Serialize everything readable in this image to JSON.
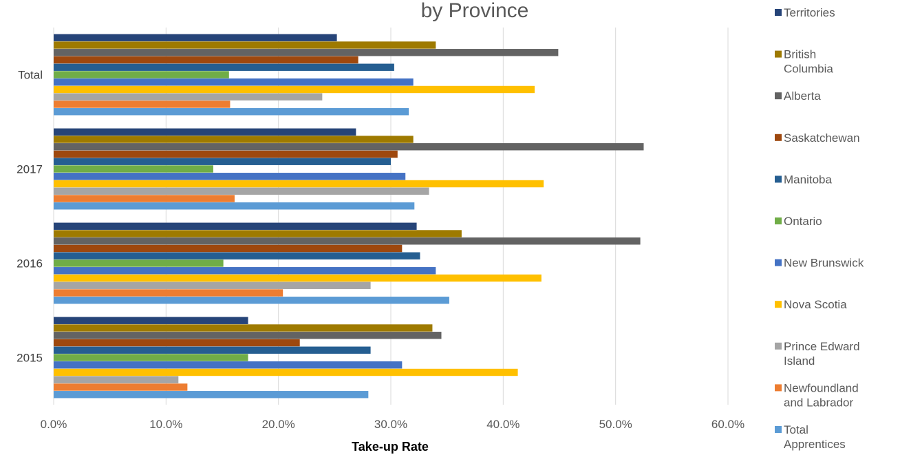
{
  "chart_data": {
    "type": "bar",
    "orientation": "horizontal",
    "title": "by Province",
    "xlabel": "Take-up Rate",
    "ylabel": "",
    "xlim": [
      0,
      60
    ],
    "x_ticks": [
      "0.0%",
      "10.0%",
      "20.0%",
      "30.0%",
      "40.0%",
      "50.0%",
      "60.0%"
    ],
    "grid": true,
    "legend_position": "right",
    "categories": [
      "Total",
      "2017",
      "2016",
      "2015"
    ],
    "series": [
      {
        "name": "Territories",
        "color": "#264478",
        "values": [
          25.2,
          26.9,
          32.3,
          17.3
        ]
      },
      {
        "name": "British Columbia",
        "color": "#9e7a00",
        "values": [
          34.0,
          32.0,
          36.3,
          33.7
        ]
      },
      {
        "name": "Alberta",
        "color": "#636363",
        "values": [
          44.9,
          52.5,
          52.2,
          34.5
        ]
      },
      {
        "name": "Saskatchewan",
        "color": "#9e480e",
        "values": [
          27.1,
          30.6,
          31.0,
          21.9
        ]
      },
      {
        "name": "Manitoba",
        "color": "#255e91",
        "values": [
          30.3,
          30.0,
          32.6,
          28.2
        ]
      },
      {
        "name": " Ontario",
        "color": "#70ad47",
        "values": [
          15.6,
          14.2,
          15.1,
          17.3
        ]
      },
      {
        "name": "New Brunswick",
        "color": "#4472c4",
        "values": [
          32.0,
          31.3,
          34.0,
          31.0
        ]
      },
      {
        "name": "Nova Scotia",
        "color": "#ffc000",
        "values": [
          42.8,
          43.6,
          43.4,
          41.3
        ]
      },
      {
        "name": "Prince Edward Island",
        "color": "#a5a5a5",
        "values": [
          23.9,
          33.4,
          28.2,
          11.1
        ]
      },
      {
        "name": "Newfoundland and Labrador",
        "color": "#ed7d31",
        "values": [
          15.7,
          16.1,
          20.4,
          11.9
        ]
      },
      {
        "name": "Total Apprentices",
        "color": "#5b9bd5",
        "values": [
          31.6,
          32.1,
          35.2,
          28.0
        ]
      }
    ]
  }
}
